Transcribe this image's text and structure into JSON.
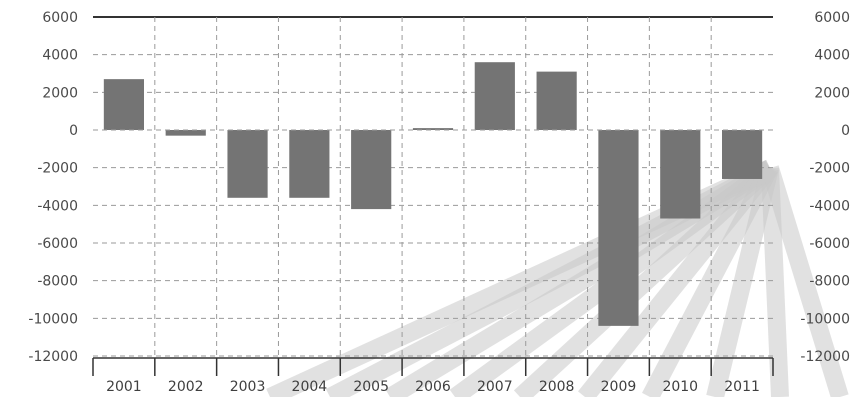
{
  "chart_data": {
    "type": "bar",
    "categories": [
      "2001",
      "2002",
      "2003",
      "2004",
      "2005",
      "2006",
      "2007",
      "2008",
      "2009",
      "2010",
      "2011"
    ],
    "values": [
      2700,
      -300,
      -3600,
      -3600,
      -4200,
      100,
      3600,
      3100,
      -10400,
      -4700,
      -2600
    ],
    "ylim": [
      -12000,
      6000
    ],
    "y_ticks": [
      "6000",
      "4000",
      "2000",
      "0",
      "-2000",
      "-4000",
      "-6000",
      "-8000",
      "-10000",
      "-12000"
    ],
    "y_ticks_right": [
      "6000",
      "4000",
      "2000",
      "0",
      "-2000",
      "-4000",
      "-6000",
      "-8000",
      "-10000",
      "-12000"
    ],
    "grid": true,
    "grid_style": "dashed",
    "dual_y_axis": true,
    "colors": {
      "bar": "#747474",
      "grid": "#9a9a9a",
      "axis": "#333333",
      "overlay": "#c8c8c8"
    }
  }
}
